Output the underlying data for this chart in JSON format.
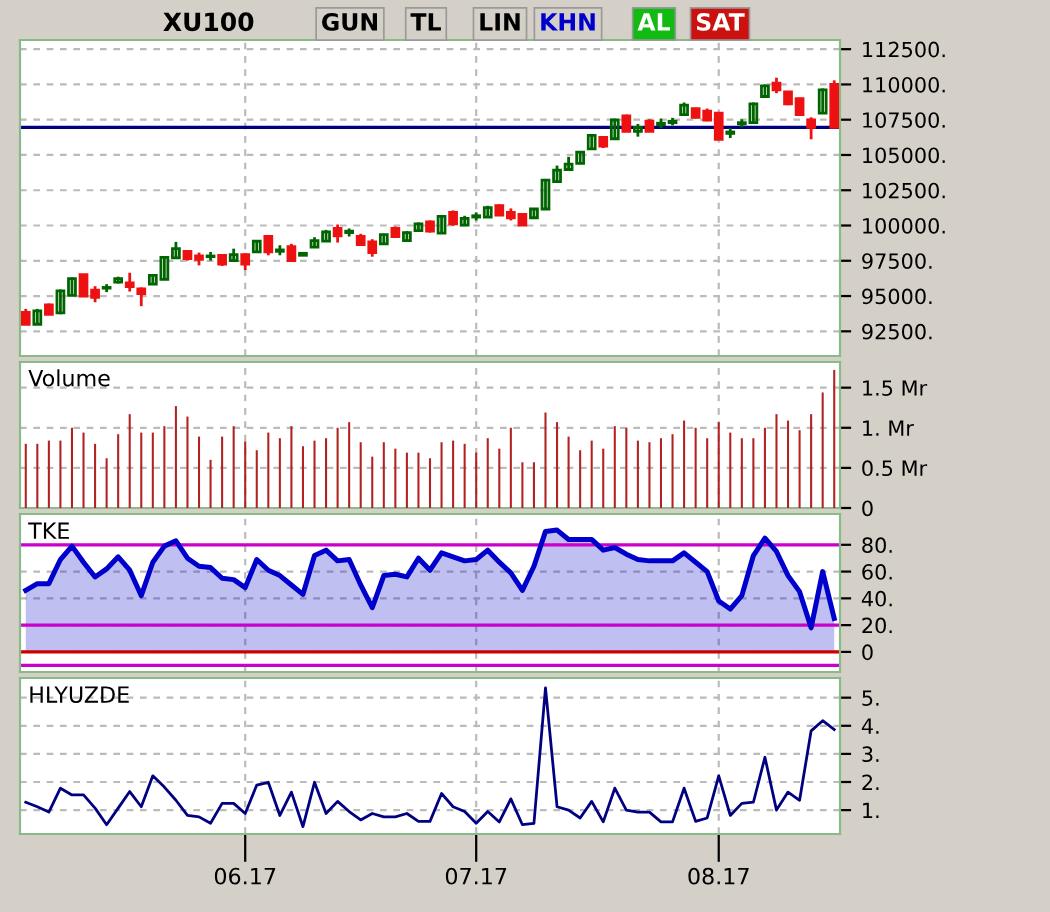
{
  "chart_data": [
    {
      "type": "candlestick",
      "title": "XU100",
      "annotations": [
        "GUN",
        "TL",
        "LIN",
        "KHN",
        "AL",
        "SAT"
      ],
      "grid": true,
      "tick_labels": "y",
      "categories": [
        null,
        null,
        null,
        null,
        null,
        null,
        null,
        null,
        null,
        null,
        null,
        null,
        null,
        null,
        null,
        null,
        null,
        null,
        null,
        "06.17",
        null,
        null,
        null,
        null,
        null,
        null,
        null,
        null,
        null,
        null,
        null,
        null,
        null,
        null,
        null,
        null,
        null,
        null,
        null,
        "07.17",
        null,
        null,
        null,
        null,
        null,
        null,
        null,
        null,
        null,
        null,
        null,
        null,
        null,
        null,
        null,
        null,
        null,
        null,
        null,
        null,
        "08.17",
        null,
        null,
        null,
        null,
        null,
        null,
        null,
        null,
        null,
        null
      ],
      "ylim": [
        90750,
        113150
      ],
      "yticks": [
        {
          "value": 92500,
          "label": "92500."
        },
        {
          "value": 95000,
          "label": "95000."
        },
        {
          "value": 97500,
          "label": "97500."
        },
        {
          "value": 100000,
          "label": "100000."
        },
        {
          "value": 102500,
          "label": "102500."
        },
        {
          "value": 105000,
          "label": "105000."
        },
        {
          "value": 107500,
          "label": "107500."
        },
        {
          "value": 110000,
          "label": "110000."
        },
        {
          "value": 112500,
          "label": "112500."
        }
      ],
      "ref_lines": [
        {
          "axis": "y",
          "value": 106960,
          "label": null,
          "color": "#000080"
        }
      ],
      "ohlc": [
        [
          93850,
          94090,
          92950,
          93000
        ],
        [
          93000,
          94090,
          92950,
          93950
        ],
        [
          94370,
          94470,
          93660,
          93710
        ],
        [
          93800,
          95465,
          93710,
          95370
        ],
        [
          95040,
          96320,
          94990,
          96230
        ],
        [
          96510,
          96560,
          94940,
          94990
        ],
        [
          95420,
          95700,
          94560,
          94900
        ],
        [
          95560,
          95845,
          95280,
          95610
        ],
        [
          95990,
          96370,
          95890,
          96230
        ],
        [
          95940,
          96650,
          95320,
          95660
        ],
        [
          95510,
          95610,
          94280,
          95180
        ],
        [
          95850,
          96560,
          95800,
          96460
        ],
        [
          96180,
          97840,
          96130,
          97745
        ],
        [
          97700,
          98840,
          97650,
          98360
        ],
        [
          98170,
          98220,
          97510,
          97650
        ],
        [
          97840,
          98080,
          97175,
          97600
        ],
        [
          97790,
          98125,
          97510,
          97840
        ],
        [
          97890,
          97980,
          97130,
          97270
        ],
        [
          97510,
          98360,
          97410,
          97940
        ],
        [
          97940,
          98030,
          96840,
          97270
        ],
        [
          98130,
          98930,
          98080,
          98885
        ],
        [
          99220,
          99310,
          97890,
          98130
        ],
        [
          98170,
          98600,
          97890,
          98270
        ],
        [
          98505,
          98700,
          97410,
          97510
        ],
        [
          97890,
          98080,
          97840,
          98030
        ],
        [
          98460,
          99170,
          98410,
          98930
        ],
        [
          98890,
          99690,
          98840,
          99550
        ],
        [
          99790,
          100070,
          98790,
          99270
        ],
        [
          99500,
          99790,
          99220,
          99600
        ],
        [
          99220,
          99410,
          98550,
          98650
        ],
        [
          98840,
          99030,
          97790,
          98080
        ],
        [
          98700,
          99410,
          98650,
          99360
        ],
        [
          99790,
          99930,
          99120,
          99220
        ],
        [
          98930,
          99600,
          98840,
          99500
        ],
        [
          99645,
          100215,
          99600,
          100120
        ],
        [
          100260,
          100360,
          99500,
          99600
        ],
        [
          99460,
          100690,
          99410,
          100640
        ],
        [
          100930,
          101070,
          99980,
          100120
        ],
        [
          100030,
          100690,
          99980,
          100500
        ],
        [
          100600,
          100930,
          100360,
          100690
        ],
        [
          100600,
          101400,
          100550,
          101260
        ],
        [
          101400,
          101500,
          100690,
          100740
        ],
        [
          100930,
          101210,
          100360,
          100550
        ],
        [
          100790,
          100880,
          99980,
          100030
        ],
        [
          100550,
          101210,
          100500,
          101170
        ],
        [
          101170,
          103300,
          101120,
          103210
        ],
        [
          103110,
          104250,
          103070,
          103920
        ],
        [
          103970,
          104870,
          103920,
          104350
        ],
        [
          104400,
          105250,
          104350,
          105200
        ],
        [
          105440,
          106490,
          105390,
          106390
        ],
        [
          106250,
          106300,
          105490,
          105630
        ],
        [
          106150,
          107580,
          106110,
          107480
        ],
        [
          107770,
          107860,
          106630,
          106680
        ],
        [
          106680,
          107200,
          106300,
          106960
        ],
        [
          107390,
          107530,
          106630,
          106680
        ],
        [
          107150,
          107580,
          106910,
          107250
        ],
        [
          107290,
          107630,
          107100,
          107390
        ],
        [
          107860,
          108720,
          107810,
          108530
        ],
        [
          108290,
          108340,
          107580,
          107670
        ],
        [
          108100,
          108290,
          107390,
          107480
        ],
        [
          107960,
          108050,
          106060,
          106110
        ],
        [
          106530,
          106910,
          106200,
          106630
        ],
        [
          107200,
          107530,
          106960,
          107290
        ],
        [
          107290,
          108720,
          107250,
          108620
        ],
        [
          109145,
          110000,
          109100,
          109905
        ],
        [
          110100,
          110480,
          109380,
          109620
        ],
        [
          109480,
          109530,
          108530,
          108620
        ],
        [
          109000,
          109050,
          107770,
          107860
        ],
        [
          107480,
          107670,
          106110,
          106960
        ],
        [
          107960,
          109720,
          107910,
          109620
        ],
        [
          110000,
          110290,
          106910,
          106960
        ]
      ]
    },
    {
      "type": "bar",
      "title": "Volume",
      "grid": true,
      "tick_labels": "y",
      "color": "#b22222",
      "categories": [
        null,
        null,
        null,
        null,
        null,
        null,
        null,
        null,
        null,
        null,
        null,
        null,
        null,
        null,
        null,
        null,
        null,
        null,
        null,
        "06.17",
        null,
        null,
        null,
        null,
        null,
        null,
        null,
        null,
        null,
        null,
        null,
        null,
        null,
        null,
        null,
        null,
        null,
        null,
        null,
        "07.17",
        null,
        null,
        null,
        null,
        null,
        null,
        null,
        null,
        null,
        null,
        null,
        null,
        null,
        null,
        null,
        null,
        null,
        null,
        null,
        null,
        "08.17",
        null,
        null,
        null,
        null,
        null,
        null,
        null,
        null,
        null,
        null
      ],
      "ylim": [
        0,
        1.82
      ],
      "yticks": [
        0,
        {
          "value": 0.5,
          "label": "0.5 Mr"
        },
        {
          "value": 1,
          "label": "1. Mr"
        },
        {
          "value": 1.5,
          "label": "1.5 Mr"
        }
      ],
      "values": [
        0.8,
        0.8,
        0.84,
        0.84,
        1.0,
        0.94,
        0.8,
        0.62,
        0.92,
        1.17,
        0.94,
        0.94,
        1.02,
        1.27,
        1.14,
        0.89,
        0.6,
        0.89,
        1.02,
        0.83,
        0.72,
        0.94,
        0.87,
        1.02,
        0.77,
        0.84,
        0.87,
        1.0,
        1.07,
        0.82,
        0.64,
        0.82,
        0.74,
        0.69,
        0.69,
        0.62,
        0.82,
        0.84,
        0.8,
        0.69,
        0.87,
        0.74,
        1.0,
        0.57,
        0.57,
        1.19,
        1.07,
        0.89,
        0.72,
        0.84,
        0.74,
        1.02,
        1.0,
        0.84,
        0.82,
        0.87,
        0.92,
        1.09,
        1.0,
        0.87,
        1.07,
        0.94,
        0.87,
        0.87,
        1.0,
        1.17,
        1.09,
        0.97,
        1.17,
        1.44,
        1.72
      ]
    },
    {
      "type": "area",
      "title": "TKE",
      "grid": true,
      "tick_labels": "y",
      "categories": [
        null,
        null,
        null,
        null,
        null,
        null,
        null,
        null,
        null,
        null,
        null,
        null,
        null,
        null,
        null,
        null,
        null,
        null,
        null,
        "06.17",
        null,
        null,
        null,
        null,
        null,
        null,
        null,
        null,
        null,
        null,
        null,
        null,
        null,
        null,
        null,
        null,
        null,
        null,
        null,
        "07.17",
        null,
        null,
        null,
        null,
        null,
        null,
        null,
        null,
        null,
        null,
        null,
        null,
        null,
        null,
        null,
        null,
        null,
        null,
        null,
        null,
        "08.17",
        null,
        null,
        null,
        null,
        null,
        null,
        null,
        null,
        null,
        null
      ],
      "ylim": [
        -15,
        103
      ],
      "yticks": [
        0,
        {
          "value": 20,
          "label": "20."
        },
        {
          "value": 40,
          "label": "40."
        },
        {
          "value": 60,
          "label": "60."
        },
        {
          "value": 80,
          "label": "80."
        }
      ],
      "ref_lines": [
        {
          "axis": "y",
          "value": 80,
          "label": null,
          "color": "#cc00cc"
        },
        {
          "axis": "y",
          "value": 20,
          "label": null,
          "color": "#cc00cc"
        },
        {
          "axis": "y",
          "value": 0,
          "label": null,
          "color": "#cc0000"
        },
        {
          "axis": "y",
          "value": -10,
          "label": null,
          "color": "#cc00cc"
        }
      ],
      "series": [
        {
          "color": "#0000cc",
          "values": [
            46,
            51,
            51,
            69,
            79,
            67,
            56,
            62,
            71,
            61,
            42,
            67,
            79,
            83,
            70,
            64,
            63,
            55,
            54,
            48,
            69,
            61,
            57,
            50,
            43,
            72,
            76,
            68,
            69,
            50,
            33,
            57,
            58,
            56,
            70,
            61,
            74,
            71,
            68,
            69,
            76,
            67,
            59,
            46,
            64,
            90,
            91,
            84,
            84,
            84,
            76,
            78,
            73,
            69,
            68,
            68,
            68,
            74,
            67,
            60,
            38,
            32,
            42,
            72,
            85,
            75,
            57,
            45,
            18,
            60,
            25
          ]
        }
      ]
    },
    {
      "type": "line",
      "title": "HLYUZDE",
      "grid": true,
      "categories": [
        null,
        null,
        null,
        null,
        null,
        null,
        null,
        null,
        null,
        null,
        null,
        null,
        null,
        null,
        null,
        null,
        null,
        null,
        null,
        "06.17",
        null,
        null,
        null,
        null,
        null,
        null,
        null,
        null,
        null,
        null,
        null,
        null,
        null,
        null,
        null,
        null,
        null,
        null,
        null,
        "07.17",
        null,
        null,
        null,
        null,
        null,
        null,
        null,
        null,
        null,
        null,
        null,
        null,
        null,
        null,
        null,
        null,
        null,
        null,
        null,
        null,
        "08.17",
        null,
        null,
        null,
        null,
        null,
        null,
        null,
        null,
        null,
        null
      ],
      "ylim": [
        0.15,
        5.7
      ],
      "yticks": [
        {
          "value": 1,
          "label": "1."
        },
        {
          "value": 2,
          "label": "2."
        },
        {
          "value": 3,
          "label": "3."
        },
        {
          "value": 4,
          "label": "4."
        },
        {
          "value": 5,
          "label": "5."
        }
      ],
      "series": [
        {
          "color": "#000080",
          "values": [
            1.28,
            1.12,
            0.93,
            1.78,
            1.54,
            1.54,
            1.07,
            0.48,
            1.07,
            1.66,
            1.12,
            2.22,
            1.82,
            1.35,
            0.81,
            0.76,
            0.53,
            1.24,
            1.24,
            0.88,
            1.89,
            1.99,
            0.81,
            1.64,
            0.41,
            1.99,
            0.88,
            1.31,
            0.95,
            0.65,
            0.88,
            0.76,
            0.76,
            0.88,
            0.6,
            0.6,
            1.59,
            1.12,
            0.95,
            0.53,
            0.95,
            0.58,
            1.4,
            0.48,
            0.53,
            5.35,
            1.12,
            1.0,
            0.72,
            1.31,
            0.58,
            1.78,
            1.0,
            0.93,
            0.93,
            0.58,
            0.58,
            1.78,
            0.6,
            0.72,
            2.22,
            0.81,
            1.24,
            1.28,
            2.88,
            1.0,
            1.64,
            1.35,
            3.82,
            4.18,
            3.87
          ]
        }
      ]
    }
  ]
}
